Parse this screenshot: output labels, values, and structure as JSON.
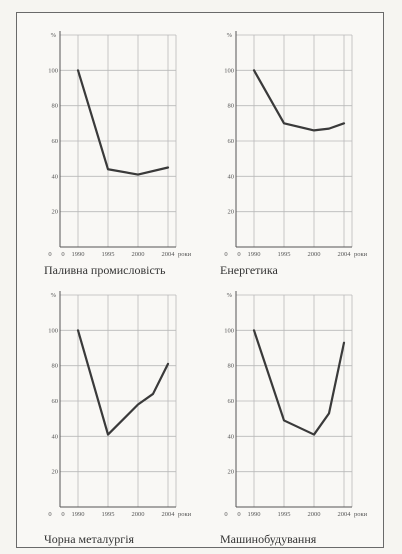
{
  "chart_data": [
    {
      "type": "line",
      "title": "Паливна промисловість",
      "ylabel": "%",
      "xlabel": "роки",
      "x": [
        "1990",
        "1995",
        "2000",
        "2004"
      ],
      "y_ticks": [
        "20",
        "40",
        "60",
        "80",
        "100"
      ],
      "origin_labels": [
        "0",
        "0"
      ],
      "ylim": [
        0,
        120
      ],
      "series": [
        {
          "values": [
            100,
            44,
            41,
            45
          ]
        }
      ]
    },
    {
      "type": "line",
      "title": "Енергетика",
      "ylabel": "%",
      "xlabel": "роки",
      "x": [
        "1990",
        "1995",
        "2000",
        "2004"
      ],
      "y_ticks": [
        "20",
        "40",
        "60",
        "80",
        "100"
      ],
      "origin_labels": [
        "0",
        "0"
      ],
      "ylim": [
        0,
        120
      ],
      "series": [
        {
          "values": [
            100,
            70,
            66,
            67,
            70
          ],
          "x": [
            0,
            1,
            2,
            2.5,
            3
          ]
        }
      ]
    },
    {
      "type": "line",
      "title": "Чорна металургія",
      "ylabel": "%",
      "xlabel": "роки",
      "x": [
        "1990",
        "1995",
        "2000",
        "2004"
      ],
      "y_ticks": [
        "20",
        "40",
        "60",
        "80",
        "100"
      ],
      "origin_labels": [
        "0",
        "0"
      ],
      "ylim": [
        0,
        120
      ],
      "series": [
        {
          "values": [
            100,
            41,
            58,
            64,
            81
          ],
          "x": [
            0,
            1,
            2,
            2.5,
            3
          ]
        }
      ]
    },
    {
      "type": "line",
      "title": "Машинобудування",
      "ylabel": "%",
      "xlabel": "роки",
      "x": [
        "1990",
        "1995",
        "2000",
        "2004"
      ],
      "y_ticks": [
        "20",
        "40",
        "60",
        "80",
        "100"
      ],
      "origin_labels": [
        "0",
        "0"
      ],
      "ylim": [
        0,
        120
      ],
      "series": [
        {
          "values": [
            100,
            49,
            41,
            53,
            93
          ],
          "x": [
            0,
            1,
            2,
            2.5,
            3
          ]
        }
      ]
    }
  ]
}
